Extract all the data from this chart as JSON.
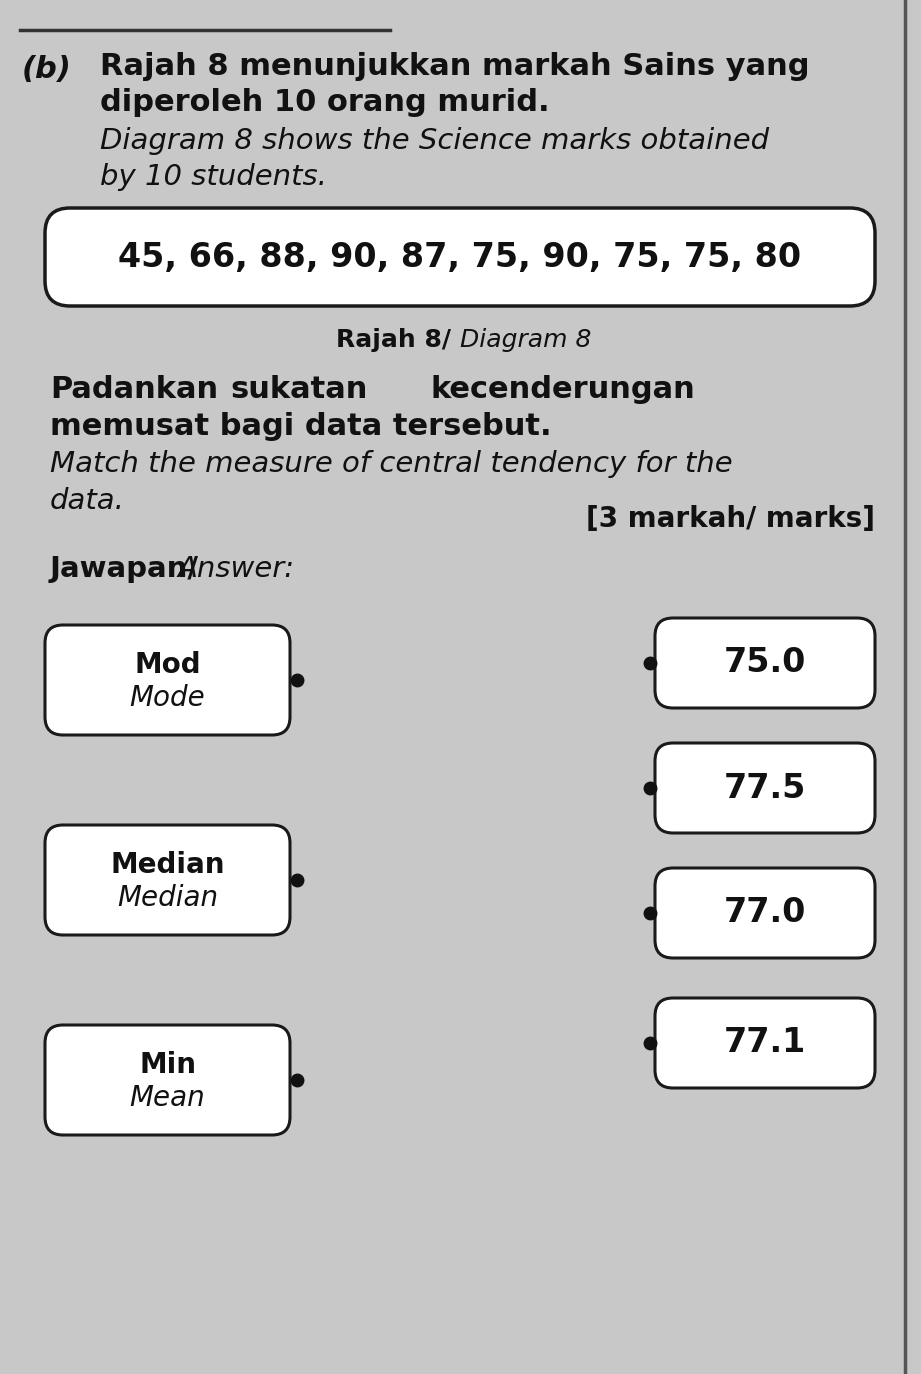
{
  "bg_color": "#c8c8c8",
  "part_label": "(b)",
  "malay_title_line1": "Rajah 8 menunjukkan markah Sains yang",
  "malay_title_line2": "diperoleh 10 orang murid.",
  "english_title_line1": "Diagram 8 shows the Science marks obtained",
  "english_title_line2": "by 10 students.",
  "data_box_text": "45, 66, 88, 90, 87, 75, 90, 75, 75, 80",
  "diagram_label_bold": "Rajah 8/ ",
  "diagram_label_italic": "Diagram 8",
  "malay_instr1": "Padankan",
  "malay_instr2": "sukatan",
  "malay_instr3": "kecenderungan",
  "malay_instr_line2": "memusat bagi data tersebut.",
  "english_instr1": "Match the measure of central tendency for the",
  "english_instr2": "data.",
  "marks_text": "[3 markah/ marks]",
  "jawapan_bold": "Jawapan/ ",
  "jawapan_italic": "Answer:",
  "left_boxes": [
    {
      "line1": "Mod",
      "line2": "Mode"
    },
    {
      "line1": "Median",
      "line2": "Median"
    },
    {
      "line1": "Min",
      "line2": "Mean"
    }
  ],
  "right_boxes": [
    "75.0",
    "77.5",
    "77.0",
    "77.1"
  ],
  "box_border_color": "#1a1a1a",
  "text_color": "#111111",
  "dot_color": "#111111"
}
